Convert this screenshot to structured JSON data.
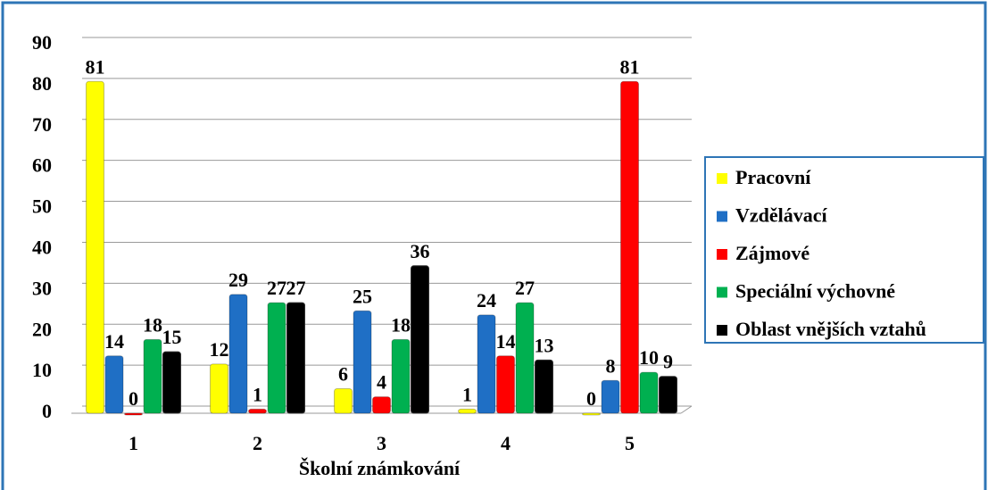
{
  "chart_data": {
    "type": "bar",
    "x_label": "Školní známkování",
    "categories": [
      "1",
      "2",
      "3",
      "4",
      "5"
    ],
    "series": [
      {
        "name": "Pracovní",
        "color": "#ffff00",
        "values": [
          81,
          12,
          6,
          1,
          0
        ]
      },
      {
        "name": "Vzdělávací",
        "color": "#1f6fc5",
        "values": [
          14,
          29,
          25,
          24,
          8
        ]
      },
      {
        "name": "Zájmové",
        "color": "#ff0000",
        "values": [
          0,
          1,
          4,
          14,
          81
        ]
      },
      {
        "name": "Speciální výchovné",
        "color": "#00b050",
        "values": [
          18,
          27,
          18,
          27,
          10
        ]
      },
      {
        "name": "Oblast vnějších vztahů",
        "color": "#000000",
        "values": [
          15,
          27,
          36,
          13,
          9
        ]
      }
    ],
    "ylim": [
      0,
      90
    ],
    "yticks": [
      0,
      10,
      20,
      30,
      40,
      50,
      60,
      70,
      80,
      90
    ],
    "grid": true,
    "legend": "right"
  }
}
